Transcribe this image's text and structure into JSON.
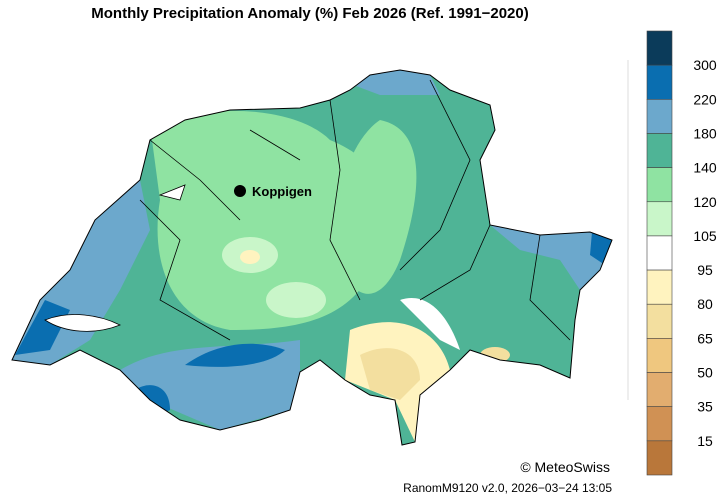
{
  "title": "Monthly Precipitation Anomaly (%) Feb 2026  (Ref. 1991−2020)",
  "marker": {
    "label": "Koppigen"
  },
  "colorbar": {
    "colors": [
      "#0b3b5a",
      "#0a6eb0",
      "#6ca8cc",
      "#4fb496",
      "#8fe3a2",
      "#c9f6c9",
      "#ffffff",
      "#fff3bf",
      "#f3df9f",
      "#efc77f",
      "#e2ad6f",
      "#d09154",
      "#b9773a"
    ],
    "ticks": [
      300,
      220,
      180,
      140,
      120,
      105,
      95,
      80,
      65,
      50,
      35,
      15
    ]
  },
  "copyright": "© MeteoSwiss",
  "footer": "RanomM9120 v2.0, 2026−03−24 13:05"
}
